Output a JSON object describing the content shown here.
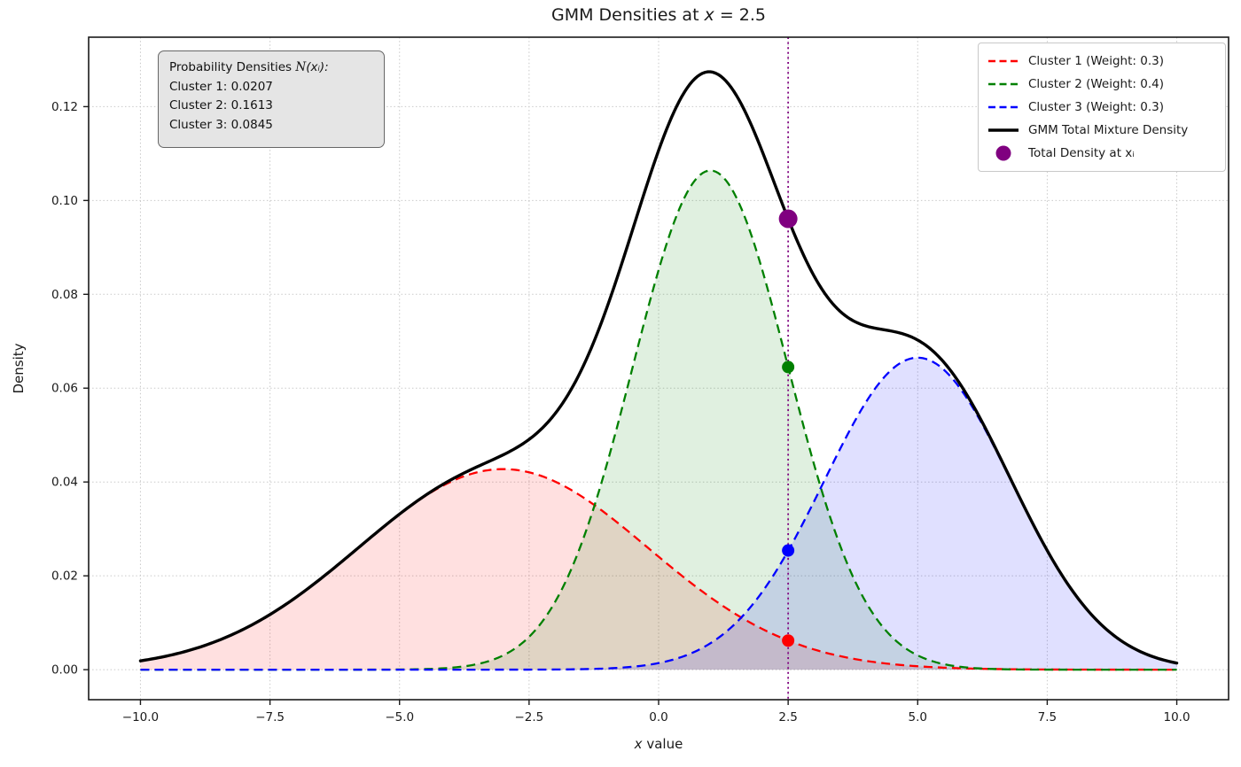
{
  "title": {
    "prefix": "GMM Densities at ",
    "var": "x",
    "suffix": " = 2.5"
  },
  "axes": {
    "xlabel_var": "x",
    "xlabel_rest": " value",
    "ylabel": "Density"
  },
  "info_box": {
    "heading_prefix": "Probability Densities ",
    "heading_symbol": "N",
    "heading_suffix": "(xᵢ):",
    "lines": [
      "Cluster 1: 0.0207",
      "Cluster 2: 0.1613",
      "Cluster 3: 0.0845"
    ]
  },
  "legend": {
    "items": [
      {
        "label": "Cluster 1 (Weight: 0.3)",
        "color": "#ff0000",
        "type": "dashed"
      },
      {
        "label": "Cluster 2 (Weight: 0.4)",
        "color": "#008000",
        "type": "dashed"
      },
      {
        "label": "Cluster 3 (Weight: 0.3)",
        "color": "#0000ff",
        "type": "dashed"
      },
      {
        "label": "GMM Total Mixture Density",
        "color": "#000000",
        "type": "solid"
      },
      {
        "label": "Total Density at xᵢ",
        "color": "#800080",
        "type": "marker"
      }
    ]
  },
  "chart_data": {
    "type": "line",
    "title": "GMM Densities at x = 2.5",
    "xlabel": "x value",
    "ylabel": "Density",
    "grid": true,
    "legend_position": "upper right",
    "xlim": [
      -11,
      11
    ],
    "ylim": [
      -0.0064,
      0.1348
    ],
    "x_range": [
      -10,
      10
    ],
    "x_ticks": {
      "values": [
        -10,
        -7.5,
        -5,
        -2.5,
        0,
        2.5,
        5,
        7.5,
        10
      ],
      "labels": [
        "−10.0",
        "−7.5",
        "−5.0",
        "−2.5",
        "0.0",
        "2.5",
        "5.0",
        "7.5",
        "10.0"
      ]
    },
    "y_ticks": {
      "values": [
        0,
        0.02,
        0.04,
        0.06,
        0.08,
        0.1,
        0.12
      ],
      "labels": [
        "0.00",
        "0.02",
        "0.04",
        "0.06",
        "0.08",
        "0.10",
        "0.12"
      ]
    },
    "xi": 2.5,
    "components": [
      {
        "name": "Cluster 1",
        "weight": 0.3,
        "mean": -3,
        "sigma": 2.8,
        "color": "#ff0000",
        "fill_alpha": 0.12,
        "peak_weighted": 0.0428,
        "density_at_xi": 0.0207,
        "weighted_density_at_xi": 0.0062
      },
      {
        "name": "Cluster 2",
        "weight": 0.4,
        "mean": 1,
        "sigma": 1.5,
        "color": "#008000",
        "fill_alpha": 0.12,
        "peak_weighted": 0.1064,
        "density_at_xi": 0.1613,
        "weighted_density_at_xi": 0.0645
      },
      {
        "name": "Cluster 3",
        "weight": 0.3,
        "mean": 5,
        "sigma": 1.8,
        "color": "#0000ff",
        "fill_alpha": 0.12,
        "peak_weighted": 0.0665,
        "density_at_xi": 0.0845,
        "weighted_density_at_xi": 0.0254
      }
    ],
    "total": {
      "name": "GMM Total Mixture Density",
      "color": "#000000",
      "peak": 0.1275,
      "value_at_xi": 0.0961
    },
    "total_marker": {
      "x": 2.5,
      "y": 0.0961,
      "color": "#800080"
    },
    "vline": {
      "x": 2.5,
      "color": "#800080",
      "style": "dotted"
    },
    "grid_color": "#c9c9c9",
    "spine_color": "#1a1a1a"
  }
}
